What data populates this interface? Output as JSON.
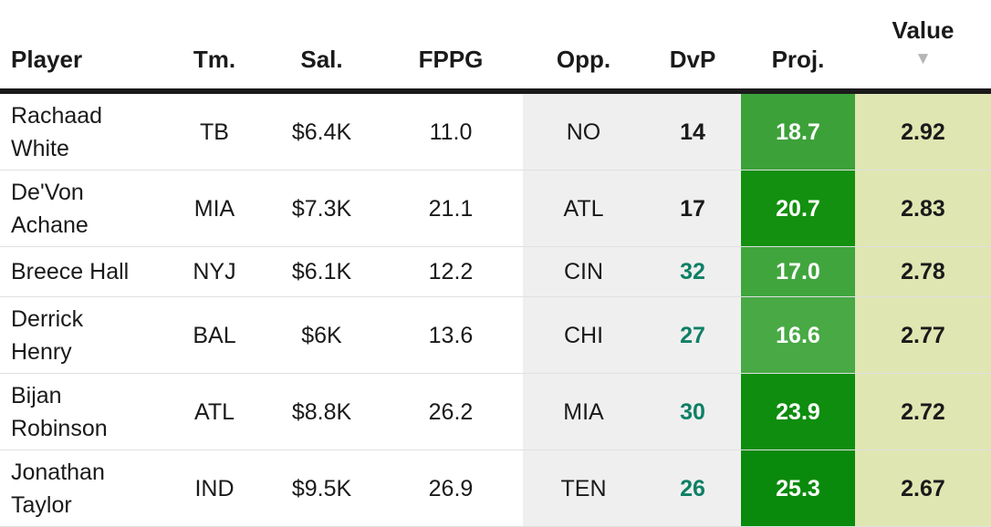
{
  "header": {
    "columns": [
      {
        "label": "Player"
      },
      {
        "label": "Tm."
      },
      {
        "label": "Sal."
      },
      {
        "label": "FPPG"
      },
      {
        "label": "Opp."
      },
      {
        "label": "DvP"
      },
      {
        "label": "Proj."
      },
      {
        "label": "Value"
      }
    ],
    "sort_indicator": {
      "column": "Value",
      "direction": "descending",
      "glyph": "▼"
    }
  },
  "rows": [
    {
      "player": "Rachaad White",
      "tm": "TB",
      "sal": "$6.4K",
      "fppg": "11.0",
      "opp": "NO",
      "dvp": "14",
      "dvp_color": "#1a1a1a",
      "proj": "18.7",
      "proj_bg": "#3ca139",
      "value": "2.92"
    },
    {
      "player": "De'Von Achane",
      "tm": "MIA",
      "sal": "$7.3K",
      "fppg": "21.1",
      "opp": "ATL",
      "dvp": "17",
      "dvp_color": "#1a1a1a",
      "proj": "20.7",
      "proj_bg": "#13900f",
      "value": "2.83"
    },
    {
      "player": "Breece Hall",
      "tm": "NYJ",
      "sal": "$6.1K",
      "fppg": "12.2",
      "opp": "CIN",
      "dvp": "32",
      "dvp_color": "#0d8066",
      "proj": "17.0",
      "proj_bg": "#41a53e",
      "value": "2.78"
    },
    {
      "player": "Derrick Henry",
      "tm": "BAL",
      "sal": "$6K",
      "fppg": "13.6",
      "opp": "CHI",
      "dvp": "27",
      "dvp_color": "#0d8066",
      "proj": "16.6",
      "proj_bg": "#48a945",
      "value": "2.77"
    },
    {
      "player": "Bijan Robinson",
      "tm": "ATL",
      "sal": "$8.8K",
      "fppg": "26.2",
      "opp": "MIA",
      "dvp": "30",
      "dvp_color": "#0d8066",
      "proj": "23.9",
      "proj_bg": "#0e8d0f",
      "value": "2.72"
    },
    {
      "player": "Jonathan Taylor",
      "tm": "IND",
      "sal": "$9.5K",
      "fppg": "26.9",
      "opp": "TEN",
      "dvp": "26",
      "dvp_color": "#0d8066",
      "proj": "25.3",
      "proj_bg": "#0a8a0c",
      "value": "2.67"
    }
  ],
  "colors": {
    "muted_column_bg": "#efefef",
    "value_column_bg": "#dfe6b2",
    "dvp_good_text": "#0d8066",
    "proj_text": "#ffffff",
    "text": "#1a1a1a",
    "row_separator": "#e0e0e0",
    "header_border": "#1a1a1a",
    "sort_icon": "#b5b5b5"
  }
}
